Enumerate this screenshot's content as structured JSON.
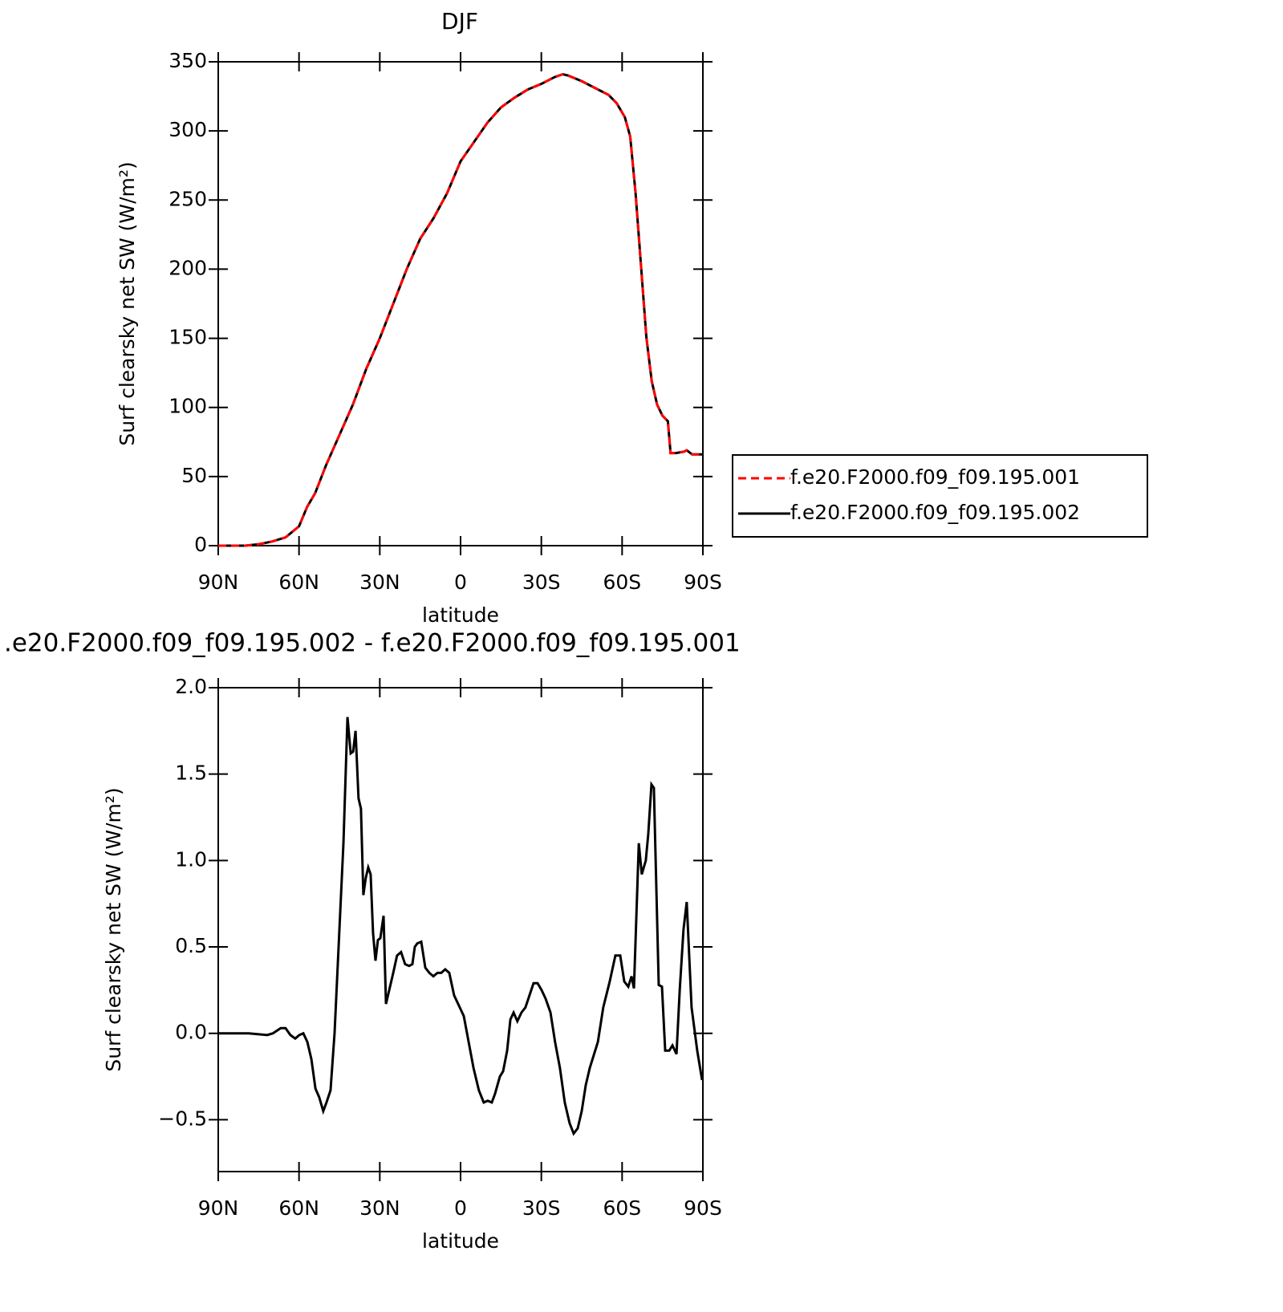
{
  "chart_data": [
    {
      "type": "line",
      "title": "DJF",
      "xlabel": "latitude",
      "ylabel": "Surf clearsky net SW (W/m²)",
      "x": [
        90,
        80,
        75,
        70,
        65,
        60,
        57,
        54,
        50,
        45,
        40,
        35,
        30,
        25,
        20,
        15,
        10,
        5,
        0,
        -5,
        -10,
        -15,
        -20,
        -25,
        -30,
        -35,
        -38,
        -40,
        -45,
        -50,
        -55,
        -58,
        -61,
        -63,
        -65,
        -67,
        -69,
        -71,
        -73,
        -75,
        -77,
        -78,
        -80,
        -83,
        -84,
        -86,
        -90
      ],
      "series": [
        {
          "name": "f.e20.F2000.f09_f09.195.001",
          "color": "#ff0000",
          "linestyle": "dashed",
          "values": [
            0,
            0,
            1,
            3,
            6,
            14,
            28,
            38,
            58,
            80,
            102,
            128,
            150,
            175,
            200,
            222,
            237,
            255,
            278,
            292,
            306,
            317,
            324,
            330,
            334,
            339,
            341,
            340,
            336,
            331,
            326,
            320,
            310,
            296,
            255,
            203,
            151,
            119,
            102,
            94,
            90,
            67,
            67,
            68,
            69,
            66,
            66
          ]
        },
        {
          "name": "f.e20.F2000.f09_f09.195.002",
          "color": "#000000",
          "linestyle": "solid",
          "values": [
            0,
            0,
            1,
            3,
            6,
            14,
            28,
            38,
            58,
            80,
            102,
            128,
            150,
            175,
            200,
            222,
            237,
            255,
            278,
            292,
            306,
            317,
            324,
            330,
            334,
            339,
            341,
            340,
            336,
            331,
            326,
            320,
            310,
            296,
            255,
            203,
            151,
            119,
            102,
            94,
            90,
            67,
            67,
            68,
            69,
            66,
            66
          ]
        }
      ],
      "xlim": [
        90,
        -90
      ],
      "xticks": [
        {
          "value": 90,
          "label": "90N"
        },
        {
          "value": 60,
          "label": "60N"
        },
        {
          "value": 30,
          "label": "30N"
        },
        0,
        {
          "value": -30,
          "label": "30S"
        },
        {
          "value": -60,
          "label": "60S"
        },
        {
          "value": -90,
          "label": "90S"
        }
      ],
      "ylim": [
        0,
        350
      ],
      "yticks": [
        0,
        50,
        100,
        150,
        200,
        250,
        300,
        350
      ],
      "legend": "outside-right"
    },
    {
      "type": "line",
      "title": ".e20.F2000.f09_f09.195.002 - f.e20.F2000.f09_f09.195.001",
      "xlabel": "latitude",
      "ylabel": "Surf clearsky net SW (W/m²)",
      "x": [
        90,
        78.7,
        71.8,
        69.7,
        66.8,
        65,
        63.2,
        61.4,
        59.9,
        58.4,
        56.9,
        55.4,
        53.9,
        52.5,
        51,
        49.8,
        48.3,
        46.8,
        45,
        43.5,
        42,
        40.8,
        39.9,
        39,
        37.9,
        37,
        36.1,
        35.2,
        34.3,
        33.4,
        32.5,
        31.6,
        30.7,
        29.8,
        28.6,
        27.7,
        26.5,
        25,
        23.6,
        22.1,
        20.6,
        19.1,
        17.9,
        17,
        16.1,
        14.6,
        13.1,
        11.6,
        10.1,
        8.6,
        7.2,
        5.7,
        4.2,
        2.4,
        0.3,
        -1.2,
        -3,
        -4.8,
        -6.8,
        -8.6,
        -10.1,
        -11.6,
        -12.8,
        -13.7,
        -14.6,
        -15.8,
        -17.3,
        -18.5,
        -19.7,
        -21.1,
        -22.6,
        -24.1,
        -25.6,
        -27.1,
        -28.6,
        -30.1,
        -31.6,
        -33.4,
        -35.1,
        -36.9,
        -38.7,
        -40.5,
        -42,
        -43.5,
        -45,
        -46.5,
        -48,
        -51,
        -53,
        -55.4,
        -57.5,
        -59.3,
        -60.8,
        -62.3,
        -63.5,
        -64.4,
        -66.2,
        -67.3,
        -68.8,
        -69.7,
        -70.9,
        -71.8,
        -73.6,
        -74.8,
        -76,
        -77.5,
        -78.7,
        -80.2,
        -81.4,
        -82.8,
        -84,
        -85.8,
        -87.9,
        -89.7
      ],
      "series": [
        {
          "color": "#000000",
          "linestyle": "solid",
          "values": [
            0,
            0,
            -0.01,
            0,
            0.03,
            0.03,
            -0.01,
            -0.03,
            -0.01,
            0,
            -0.05,
            -0.15,
            -0.32,
            -0.37,
            -0.45,
            -0.4,
            -0.33,
            0,
            0.6,
            1.1,
            1.83,
            1.62,
            1.63,
            1.75,
            1.36,
            1.3,
            0.8,
            0.9,
            0.96,
            0.92,
            0.58,
            0.42,
            0.54,
            0.55,
            0.68,
            0.17,
            0.25,
            0.35,
            0.45,
            0.47,
            0.4,
            0.39,
            0.4,
            0.5,
            0.52,
            0.53,
            0.38,
            0.35,
            0.33,
            0.35,
            0.35,
            0.37,
            0.35,
            0.22,
            0.15,
            0.1,
            -0.05,
            -0.2,
            -0.33,
            -0.4,
            -0.39,
            -0.4,
            -0.35,
            -0.3,
            -0.25,
            -0.22,
            -0.1,
            0.08,
            0.12,
            0.07,
            0.12,
            0.15,
            0.22,
            0.29,
            0.29,
            0.25,
            0.2,
            0.12,
            -0.05,
            -0.2,
            -0.4,
            -0.52,
            -0.58,
            -0.55,
            -0.45,
            -0.3,
            -0.2,
            -0.05,
            0.15,
            0.3,
            0.45,
            0.45,
            0.3,
            0.27,
            0.33,
            0.26,
            1.1,
            0.92,
            1.0,
            1.15,
            1.44,
            1.42,
            0.28,
            0.27,
            -0.1,
            -0.1,
            -0.07,
            -0.12,
            0.25,
            0.6,
            0.76,
            0.15,
            -0.1,
            -0.27
          ]
        }
      ],
      "xlim": [
        90,
        -90
      ],
      "xticks": [
        {
          "value": 90,
          "label": "90N"
        },
        {
          "value": 60,
          "label": "60N"
        },
        {
          "value": 30,
          "label": "30N"
        },
        0,
        {
          "value": -30,
          "label": "30S"
        },
        {
          "value": -60,
          "label": "60S"
        },
        {
          "value": -90,
          "label": "90S"
        }
      ],
      "ylim": [
        -0.8,
        2.0
      ],
      "yticks": [
        {
          "value": -0.5,
          "label": "−0.5"
        },
        {
          "value": 0,
          "label": "0.0"
        },
        {
          "value": 0.5,
          "label": "0.5"
        },
        {
          "value": 1.0,
          "label": "1.0"
        },
        {
          "value": 1.5,
          "label": "1.5"
        },
        {
          "value": 2.0,
          "label": "2.0"
        }
      ]
    }
  ]
}
